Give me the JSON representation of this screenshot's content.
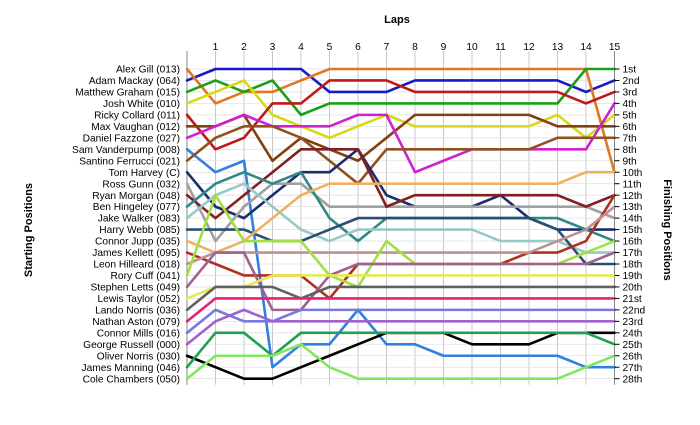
{
  "chart_data": {
    "type": "line",
    "title": "",
    "xlabel": "Laps",
    "ylabel_left": "Starting Positions",
    "ylabel_right": "Finishing Positions",
    "laps": [
      1,
      2,
      3,
      4,
      5,
      6,
      7,
      8,
      9,
      10,
      11,
      12,
      13,
      14,
      15
    ],
    "grid": true,
    "starting_positions": [
      "Alex Gill (013)",
      "Adam Mackay (064)",
      "Matthew Graham (015)",
      "Josh White (010)",
      "Ricky Collard (011)",
      "Max Vaughan (012)",
      "Daniel Fazzone (027)",
      "Sam Vanderpump (008)",
      "Santino Ferrucci (021)",
      "Tom Harvey (C)",
      "Ross Gunn (032)",
      "Ryan Morgan (048)",
      "Ben Hingeley (077)",
      "Jake Walker (083)",
      "Harry Webb (085)",
      "Connor Jupp (035)",
      "James Kellett (095)",
      "Leon Hilleard (018)",
      "Rory Cuff (041)",
      "Stephen Letts (049)",
      "Lewis Taylor (052)",
      "Lando Norris (036)",
      "Nathan Aston (079)",
      "Connor Mills (016)",
      "George Russell (000)",
      "Oliver Norris (030)",
      "James Manning (046)",
      "Cole Chambers (050)"
    ],
    "finishing_positions": [
      "1st",
      "2nd",
      "3rd",
      "4th",
      "5th",
      "6th",
      "7th",
      "8th",
      "9th",
      "10th",
      "11th",
      "12th",
      "13th",
      "14th",
      "15th",
      "16th",
      "17th",
      "18th",
      "19th",
      "20th",
      "21st",
      "22nd",
      "23rd",
      "24th",
      "25th",
      "26th",
      "27th",
      "28th"
    ],
    "series": [
      {
        "color": "#1818c8",
        "positions": [
          2,
          1,
          1,
          1,
          1,
          3,
          3,
          3,
          2,
          2,
          2,
          2,
          2,
          2,
          3,
          2
        ]
      },
      {
        "color": "#e07820",
        "positions": [
          1,
          4,
          3,
          3,
          2,
          1,
          1,
          1,
          1,
          1,
          1,
          1,
          1,
          1,
          1,
          10
        ]
      },
      {
        "color": "#18a018",
        "positions": [
          3,
          2,
          3,
          2,
          5,
          4,
          4,
          4,
          4,
          4,
          4,
          4,
          4,
          4,
          1,
          1
        ]
      },
      {
        "color": "#d8d818",
        "positions": [
          4,
          3,
          2,
          5,
          6,
          7,
          6,
          5,
          6,
          6,
          6,
          6,
          6,
          5,
          7,
          5
        ]
      },
      {
        "color": "#c01818",
        "positions": [
          5,
          8,
          7,
          4,
          4,
          2,
          2,
          2,
          3,
          3,
          3,
          3,
          3,
          3,
          4,
          3
        ]
      },
      {
        "color": "#804010",
        "positions": [
          6,
          6,
          5,
          9,
          7,
          8,
          9,
          7,
          5,
          5,
          5,
          5,
          5,
          6,
          6,
          6
        ]
      },
      {
        "color": "#d020d0",
        "positions": [
          7,
          6,
          5,
          6,
          6,
          6,
          5,
          5,
          10,
          9,
          8,
          8,
          8,
          8,
          8,
          4
        ]
      },
      {
        "color": "#3080e0",
        "positions": [
          8,
          10,
          9,
          27,
          25,
          25,
          22,
          25,
          25,
          26,
          26,
          26,
          26,
          26,
          27,
          27
        ]
      },
      {
        "color": "#905020",
        "positions": [
          9,
          7,
          6,
          6,
          7,
          9,
          11,
          8,
          8,
          8,
          8,
          8,
          8,
          7,
          7,
          7
        ]
      },
      {
        "color": "#1a2e6e",
        "positions": [
          10,
          13,
          14,
          12,
          10,
          10,
          8,
          12,
          13,
          13,
          13,
          12,
          14,
          15,
          15,
          15
        ]
      },
      {
        "color": "#a0a0a0",
        "positions": [
          11,
          16,
          13,
          11,
          11,
          13,
          13,
          13,
          13,
          13,
          13,
          13,
          13,
          13,
          13,
          14
        ]
      },
      {
        "color": "#802020",
        "positions": [
          12,
          14,
          12,
          10,
          8,
          8,
          8,
          13,
          12,
          12,
          12,
          12,
          12,
          12,
          13,
          12
        ]
      },
      {
        "color": "#308888",
        "positions": [
          13,
          11,
          10,
          11,
          10,
          14,
          16,
          14,
          14,
          14,
          14,
          14,
          14,
          14,
          15,
          16
        ]
      },
      {
        "color": "#98c8c8",
        "positions": [
          14,
          12,
          11,
          13,
          15,
          16,
          15,
          15,
          15,
          15,
          15,
          16,
          16,
          16,
          17,
          17
        ]
      },
      {
        "color": "#2a5070",
        "positions": [
          15,
          15,
          15,
          16,
          16,
          15,
          14,
          14,
          14,
          14,
          14,
          14,
          14,
          15,
          18,
          18
        ]
      },
      {
        "color": "#f0b060",
        "positions": [
          16,
          17,
          16,
          14,
          12,
          11,
          11,
          11,
          11,
          11,
          11,
          11,
          11,
          11,
          10,
          10
        ]
      },
      {
        "color": "#b03020",
        "positions": [
          17,
          18,
          19,
          19,
          19,
          21,
          18,
          18,
          18,
          18,
          18,
          18,
          17,
          17,
          16,
          12
        ]
      },
      {
        "color": "#c09090",
        "positions": [
          18,
          17,
          17,
          17,
          17,
          17,
          17,
          17,
          17,
          17,
          17,
          17,
          17,
          16,
          15,
          13
        ]
      },
      {
        "color": "#a0e040",
        "positions": [
          19,
          12,
          16,
          16,
          16,
          19,
          20,
          16,
          18,
          18,
          18,
          18,
          18,
          18,
          17,
          16
        ]
      },
      {
        "color": "#a06090",
        "positions": [
          20,
          17,
          17,
          22,
          22,
          19,
          18,
          18,
          18,
          18,
          18,
          18,
          18,
          18,
          18,
          17
        ]
      },
      {
        "color": "#e8e850",
        "positions": [
          21,
          20,
          20,
          19,
          19,
          19,
          19,
          19,
          19,
          19,
          19,
          19,
          19,
          19,
          19,
          19
        ]
      },
      {
        "color": "#606060",
        "positions": [
          22,
          20,
          20,
          20,
          21,
          20,
          20,
          20,
          20,
          20,
          20,
          20,
          20,
          20,
          20,
          20
        ]
      },
      {
        "color": "#e82070",
        "positions": [
          23,
          21,
          21,
          21,
          21,
          21,
          21,
          21,
          21,
          21,
          21,
          21,
          21,
          21,
          21,
          21
        ]
      },
      {
        "color": "#7878e0",
        "positions": [
          24,
          22,
          23,
          23,
          22,
          22,
          22,
          22,
          22,
          22,
          22,
          22,
          22,
          22,
          22,
          22
        ]
      },
      {
        "color": "#a060d0",
        "positions": [
          25,
          23,
          22,
          23,
          23,
          23,
          23,
          23,
          23,
          23,
          23,
          23,
          23,
          23,
          23,
          23
        ]
      },
      {
        "color": "#000000",
        "positions": [
          26,
          27,
          28,
          28,
          27,
          26,
          25,
          24,
          24,
          24,
          25,
          25,
          25,
          24,
          24,
          24
        ]
      },
      {
        "color": "#20a050",
        "positions": [
          27,
          24,
          24,
          26,
          24,
          24,
          24,
          24,
          24,
          24,
          24,
          24,
          24,
          24,
          24,
          25
        ]
      },
      {
        "color": "#80e860",
        "positions": [
          28,
          26,
          26,
          26,
          25,
          27,
          28,
          28,
          28,
          28,
          28,
          28,
          28,
          28,
          27,
          26
        ]
      }
    ]
  }
}
